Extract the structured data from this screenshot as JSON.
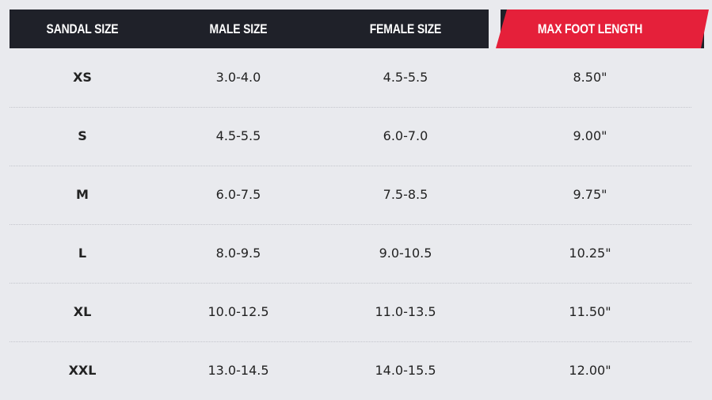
{
  "colors": {
    "header_bg": "#1f2129",
    "accent": "#e5203a",
    "page_bg": "#e9eaee"
  },
  "headers": [
    "SANDAL SIZE",
    "MALE SIZE",
    "FEMALE SIZE",
    "MAX FOOT LENGTH"
  ],
  "rows": [
    [
      "XS",
      "3.0-4.0",
      "4.5-5.5",
      "8.50\""
    ],
    [
      "S",
      "4.5-5.5",
      "6.0-7.0",
      "9.00\""
    ],
    [
      "M",
      "6.0-7.5",
      "7.5-8.5",
      "9.75\""
    ],
    [
      "L",
      "8.0-9.5",
      "9.0-10.5",
      "10.25\""
    ],
    [
      "XL",
      "10.0-12.5",
      "11.0-13.5",
      "11.50\""
    ],
    [
      "XXL",
      "13.0-14.5",
      "14.0-15.5",
      "12.00\""
    ]
  ]
}
